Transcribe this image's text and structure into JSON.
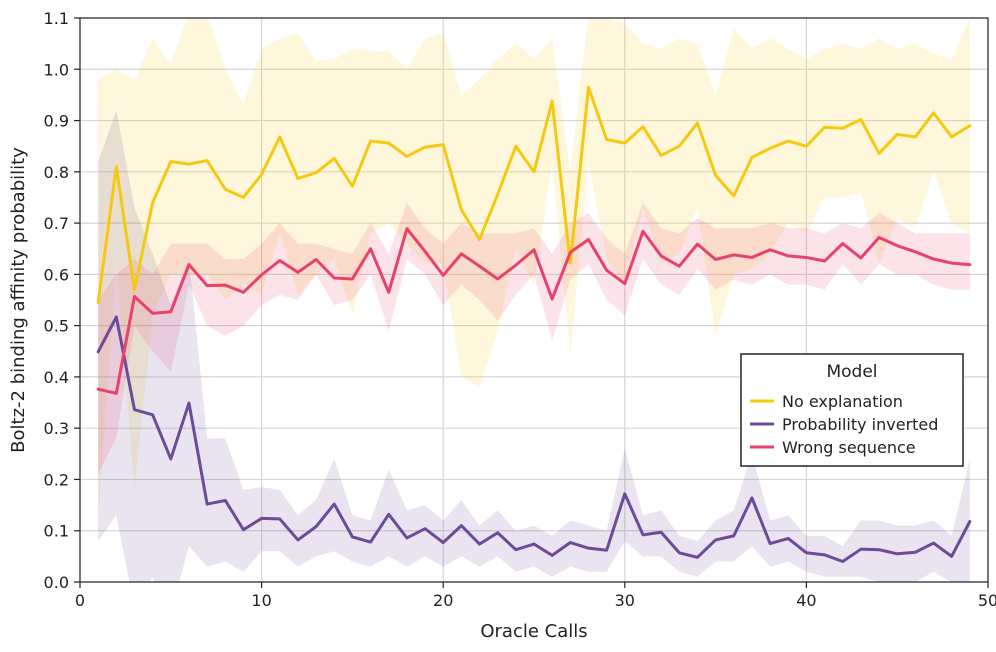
{
  "chart_data": {
    "type": "line",
    "title": "",
    "xlabel": "Oracle Calls",
    "ylabel": "Boltz-2 binding affinity probability",
    "xlim": [
      0,
      50
    ],
    "ylim": [
      0,
      1.1
    ],
    "xticks": [
      0,
      10,
      20,
      30,
      40,
      50
    ],
    "yticks": [
      0.0,
      0.1,
      0.2,
      0.3,
      0.4,
      0.5,
      0.6,
      0.7,
      0.8,
      0.9,
      1.0,
      1.1
    ],
    "xtick_labels": [
      "0",
      "10",
      "20",
      "30",
      "40",
      "50"
    ],
    "ytick_labels": [
      "0.0",
      "0.1",
      "0.2",
      "0.3",
      "0.4",
      "0.5",
      "0.6",
      "0.7",
      "0.8",
      "0.9",
      "1.0",
      "1.1"
    ],
    "grid": true,
    "legend": {
      "title": "Model",
      "position": "center-right"
    },
    "x": [
      1,
      2,
      3,
      4,
      5,
      6,
      7,
      8,
      9,
      10,
      11,
      12,
      13,
      14,
      15,
      16,
      17,
      18,
      19,
      20,
      21,
      22,
      23,
      24,
      25,
      26,
      27,
      28,
      29,
      30,
      31,
      32,
      33,
      34,
      35,
      36,
      37,
      38,
      39,
      40,
      41,
      42,
      43,
      44,
      45,
      46,
      47,
      48,
      49
    ],
    "series": [
      {
        "name": "No explanation",
        "color": "#f5c90f",
        "values": [
          0.545,
          0.81,
          0.57,
          0.74,
          0.82,
          0.815,
          0.822,
          0.766,
          0.75,
          0.795,
          0.868,
          0.787,
          0.798,
          0.826,
          0.772,
          0.86,
          0.856,
          0.83,
          0.848,
          0.853,
          0.726,
          0.668,
          0.756,
          0.85,
          0.8,
          0.938,
          0.622,
          0.965,
          0.863,
          0.856,
          0.888,
          0.832,
          0.85,
          0.895,
          0.793,
          0.753,
          0.828,
          0.846,
          0.86,
          0.85,
          0.887,
          0.885,
          0.902,
          0.836,
          0.873,
          0.868,
          0.915,
          0.868,
          0.89
        ],
        "upper": [
          0.98,
          1.0,
          0.98,
          1.06,
          1.01,
          1.11,
          1.11,
          1.0,
          0.93,
          1.04,
          1.06,
          1.07,
          1.015,
          1.02,
          1.04,
          1.035,
          1.035,
          1.0,
          1.06,
          1.07,
          0.95,
          0.98,
          1.02,
          1.05,
          1.02,
          1.06,
          0.8,
          1.11,
          1.1,
          1.09,
          1.05,
          1.04,
          1.06,
          1.05,
          0.95,
          1.08,
          1.04,
          1.06,
          1.04,
          1.02,
          1.04,
          1.05,
          1.04,
          1.06,
          1.04,
          1.05,
          1.03,
          1.02,
          1.1
        ],
        "lower": [
          0.12,
          0.62,
          0.18,
          0.52,
          0.6,
          0.6,
          0.6,
          0.55,
          0.58,
          0.56,
          0.68,
          0.56,
          0.6,
          0.63,
          0.52,
          0.68,
          0.7,
          0.66,
          0.62,
          0.62,
          0.4,
          0.38,
          0.49,
          0.65,
          0.58,
          0.82,
          0.44,
          0.82,
          0.63,
          0.58,
          0.73,
          0.62,
          0.64,
          0.73,
          0.48,
          0.6,
          0.61,
          0.64,
          0.7,
          0.68,
          0.75,
          0.75,
          0.76,
          0.62,
          0.71,
          0.69,
          0.8,
          0.7,
          0.68
        ]
      },
      {
        "name": "Probability inverted",
        "color": "#6b4c9a",
        "values": [
          0.449,
          0.517,
          0.336,
          0.326,
          0.24,
          0.349,
          0.152,
          0.159,
          0.102,
          0.124,
          0.123,
          0.082,
          0.108,
          0.152,
          0.088,
          0.078,
          0.132,
          0.086,
          0.104,
          0.077,
          0.11,
          0.074,
          0.096,
          0.063,
          0.074,
          0.052,
          0.077,
          0.066,
          0.062,
          0.172,
          0.092,
          0.097,
          0.057,
          0.048,
          0.082,
          0.09,
          0.164,
          0.075,
          0.085,
          0.057,
          0.053,
          0.04,
          0.064,
          0.063,
          0.055,
          0.058,
          0.076,
          0.05,
          0.118
        ],
        "upper": [
          0.82,
          0.92,
          0.73,
          0.64,
          0.54,
          0.63,
          0.28,
          0.28,
          0.18,
          0.185,
          0.18,
          0.13,
          0.16,
          0.24,
          0.13,
          0.12,
          0.22,
          0.14,
          0.15,
          0.12,
          0.16,
          0.11,
          0.14,
          0.1,
          0.11,
          0.09,
          0.12,
          0.11,
          0.1,
          0.26,
          0.13,
          0.14,
          0.09,
          0.08,
          0.12,
          0.14,
          0.25,
          0.12,
          0.13,
          0.09,
          0.09,
          0.07,
          0.12,
          0.12,
          0.11,
          0.11,
          0.12,
          0.09,
          0.24
        ],
        "lower": [
          0.08,
          0.13,
          -0.05,
          0.01,
          -0.06,
          0.07,
          0.03,
          0.04,
          0.02,
          0.06,
          0.06,
          0.03,
          0.05,
          0.06,
          0.04,
          0.03,
          0.05,
          0.03,
          0.05,
          0.03,
          0.05,
          0.03,
          0.05,
          0.02,
          0.03,
          0.01,
          0.03,
          0.02,
          0.02,
          0.08,
          0.05,
          0.05,
          0.02,
          0.01,
          0.04,
          0.04,
          0.07,
          0.03,
          0.04,
          0.02,
          0.01,
          0.01,
          0.01,
          0.0,
          0.0,
          0.0,
          0.02,
          0.0,
          -0.01
        ]
      },
      {
        "name": "Wrong sequence",
        "color": "#e8416b",
        "values": [
          0.376,
          0.368,
          0.557,
          0.524,
          0.527,
          0.619,
          0.578,
          0.579,
          0.565,
          0.599,
          0.627,
          0.604,
          0.629,
          0.593,
          0.591,
          0.65,
          0.565,
          0.689,
          0.645,
          0.598,
          0.64,
          0.616,
          0.591,
          0.618,
          0.648,
          0.552,
          0.643,
          0.668,
          0.608,
          0.582,
          0.684,
          0.636,
          0.616,
          0.659,
          0.629,
          0.638,
          0.633,
          0.648,
          0.636,
          0.633,
          0.626,
          0.66,
          0.632,
          0.672,
          0.656,
          0.644,
          0.63,
          0.622,
          0.619
        ],
        "upper": [
          0.55,
          0.6,
          0.63,
          0.6,
          0.66,
          0.66,
          0.66,
          0.63,
          0.63,
          0.66,
          0.7,
          0.66,
          0.66,
          0.65,
          0.64,
          0.7,
          0.64,
          0.74,
          0.69,
          0.66,
          0.7,
          0.68,
          0.68,
          0.68,
          0.69,
          0.64,
          0.7,
          0.72,
          0.67,
          0.64,
          0.74,
          0.69,
          0.68,
          0.71,
          0.69,
          0.69,
          0.69,
          0.7,
          0.69,
          0.69,
          0.68,
          0.7,
          0.69,
          0.72,
          0.7,
          0.68,
          0.68,
          0.68,
          0.68
        ],
        "lower": [
          0.21,
          0.28,
          0.5,
          0.45,
          0.41,
          0.58,
          0.5,
          0.48,
          0.5,
          0.54,
          0.56,
          0.55,
          0.6,
          0.54,
          0.55,
          0.6,
          0.49,
          0.63,
          0.6,
          0.54,
          0.58,
          0.55,
          0.51,
          0.56,
          0.6,
          0.47,
          0.59,
          0.62,
          0.55,
          0.52,
          0.63,
          0.58,
          0.56,
          0.61,
          0.57,
          0.59,
          0.58,
          0.6,
          0.58,
          0.58,
          0.57,
          0.62,
          0.58,
          0.62,
          0.6,
          0.6,
          0.58,
          0.57,
          0.57
        ]
      }
    ]
  }
}
